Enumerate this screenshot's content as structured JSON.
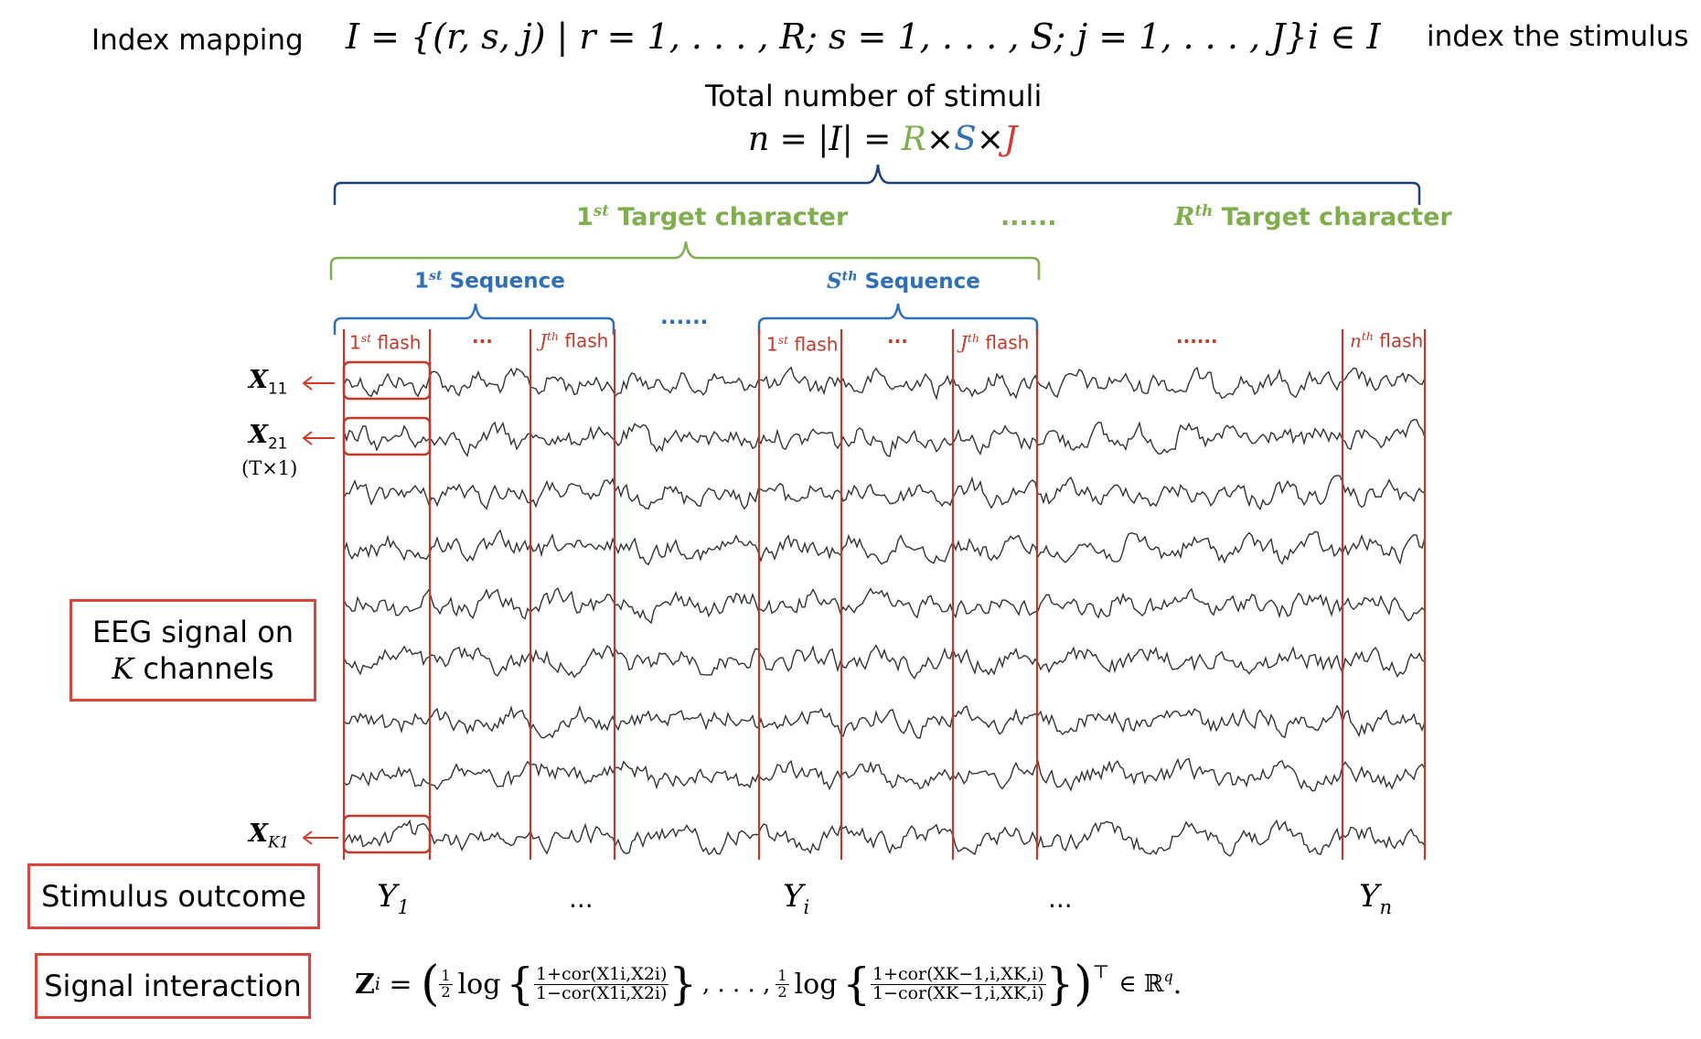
{
  "header": {
    "index_mapping_label": "Index mapping",
    "index_set_formula": "I = {(r, s, j) | r = 1, . . . , R; s = 1, . . . , S; j = 1, . . . , J}",
    "index_member": "i ∈ I",
    "index_desc": "index the stimulus",
    "total_label": "Total number of stimuli",
    "total_formula_lhs": "n = |I| = ",
    "total_R": "R",
    "total_S": "S",
    "total_J": "J",
    "times": "×"
  },
  "brackets": {
    "target_first_sup": "st",
    "target_first_num": "1",
    "target_first_text": "Target character",
    "target_dots": "......",
    "target_last_var": "R",
    "target_last_sup": "th",
    "target_last_text": "Target character",
    "seq_first_num": "1",
    "seq_first_sup": "st",
    "seq_first_text": "Sequence",
    "seq_dots": "......",
    "seq_last_var": "S",
    "seq_last_sup": "th",
    "seq_last_text": "Sequence"
  },
  "flashes": {
    "first_num": "1",
    "first_sup": "st",
    "word": "flash",
    "j_var": "J",
    "j_sup": "th",
    "n_var": "n",
    "n_sup": "th",
    "dots_a": "...",
    "dots_b": "...",
    "dots_mid": "......"
  },
  "channels": {
    "x11": "X",
    "x11_sub": "11",
    "x21": "X",
    "x21_sub": "21",
    "dim": "(T×1)",
    "xk1": "X",
    "xk1_sub": "K1"
  },
  "boxes": {
    "eeg_line1": "EEG signal on",
    "eeg_var": "K",
    "eeg_line2": "channels",
    "stimulus": "Stimulus outcome",
    "interaction": "Signal interaction"
  },
  "outcomes": {
    "y1": "Y",
    "y1_sub": "1",
    "dots1": "...",
    "yi": "Y",
    "yi_sub": "i",
    "dots2": "...",
    "yn": "Y",
    "yn_sub": "n"
  },
  "formula": {
    "lhs": "Z",
    "lhs_sub": "i",
    "eq": " = ",
    "half": "1/2",
    "log": "log",
    "num1": "1+cor(X1i,X2i)",
    "den1": "1−cor(X1i,X2i)",
    "mid": ", . . . ,",
    "num2": "1+cor(XK−1,i,XK,i)",
    "den2": "1−cor(XK−1,i,XK,i)",
    "transpose": "⊤",
    "space": "∈ ℝ",
    "space_sup": "q",
    "period": "."
  },
  "colors": {
    "target": "#7fae4f",
    "sequence": "#2f6fb5",
    "flash": "#d23a2e",
    "box_border": "#d9453c",
    "eeg_line": "#333333"
  }
}
